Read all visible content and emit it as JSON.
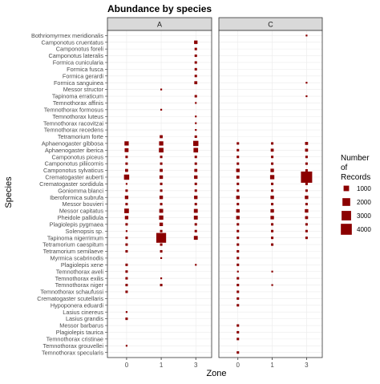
{
  "chart_data": {
    "type": "scatter",
    "title": "Abundance by species",
    "xlabel": "Zone",
    "ylabel": "Species",
    "x_ticks": [
      "0",
      "1",
      "3"
    ],
    "facets": [
      "A",
      "C"
    ],
    "species": [
      "Bothriomyrmex meridionalis",
      "Camponotus cruentatus",
      "Camponotus foreli",
      "Camponotus lateralis",
      "Formica cunicularia",
      "Formica fusca",
      "Formica gerardi",
      "Formica sanguinea",
      "Messor structor",
      "Tapinoma erraticum",
      "Temnothorax affinis",
      "Temnothorax formosus",
      "Temnothorax luteus",
      "Temnothorax racovitzai",
      "Temnothorax recedens",
      "Tetramorium forte",
      "Aphaenogaster gibbosa",
      "Aphaenogaster iberica",
      "Camponotus piceus",
      "Camponotus piliicornis",
      "Camponotus sylvaticus",
      "Crematogaster auberti",
      "Crematogaster sordidula",
      "Goniomma blanci",
      "Iberoformica subrufa",
      "Messor bouvieri",
      "Messor capitatus",
      "Pheidole pallidula",
      "Plagiolepis pygmaea",
      "Solenopsis sp.",
      "Tapinoma nigerrimum",
      "Tetramorium caespitum",
      "Tetramorium semilaeve",
      "Myrmica scabrinodis",
      "Plagiolepis xene",
      "Temnothorax aveli",
      "Temnothorax exilis",
      "Temnothorax niger",
      "Temnothorax schaufussi",
      "Crematogaster scutellaris",
      "Hypoponera eduardi",
      "Lasius cinereus",
      "Lasius grandis",
      "Messor barbarus",
      "Plagiolepis taurica",
      "Temnothorax cristinae",
      "Temnothorax grouvellei",
      "Temnothorax specularis"
    ],
    "legend": {
      "title": "Number of Records",
      "position": "right",
      "breaks": [
        1000,
        2000,
        3000,
        4000
      ],
      "color": "#8b0000"
    },
    "grid": true,
    "points": [
      {
        "facet": "A",
        "species": "Camponotus cruentatus",
        "zone": "3",
        "records": 400
      },
      {
        "facet": "A",
        "species": "Camponotus foreli",
        "zone": "3",
        "records": 200
      },
      {
        "facet": "A",
        "species": "Camponotus lateralis",
        "zone": "3",
        "records": 200
      },
      {
        "facet": "A",
        "species": "Formica cunicularia",
        "zone": "3",
        "records": 200
      },
      {
        "facet": "A",
        "species": "Formica fusca",
        "zone": "3",
        "records": 200
      },
      {
        "facet": "A",
        "species": "Formica gerardi",
        "zone": "3",
        "records": 200
      },
      {
        "facet": "A",
        "species": "Formica sanguinea",
        "zone": "3",
        "records": 300
      },
      {
        "facet": "A",
        "species": "Messor structor",
        "zone": "1",
        "records": 100
      },
      {
        "facet": "A",
        "species": "Tapinoma erraticum",
        "zone": "3",
        "records": 200
      },
      {
        "facet": "A",
        "species": "Temnothorax affinis",
        "zone": "3",
        "records": 100
      },
      {
        "facet": "A",
        "species": "Temnothorax formosus",
        "zone": "1",
        "records": 100
      },
      {
        "facet": "A",
        "species": "Temnothorax luteus",
        "zone": "3",
        "records": 80
      },
      {
        "facet": "A",
        "species": "Temnothorax racovitzai",
        "zone": "3",
        "records": 60
      },
      {
        "facet": "A",
        "species": "Temnothorax recedens",
        "zone": "3",
        "records": 60
      },
      {
        "facet": "A",
        "species": "Tetramorium forte",
        "zone": "1",
        "records": 300
      },
      {
        "facet": "A",
        "species": "Tetramorium forte",
        "zone": "3",
        "records": 200
      },
      {
        "facet": "A",
        "species": "Aphaenogaster gibbosa",
        "zone": "0",
        "records": 600
      },
      {
        "facet": "A",
        "species": "Aphaenogaster gibbosa",
        "zone": "1",
        "records": 600
      },
      {
        "facet": "A",
        "species": "Aphaenogaster gibbosa",
        "zone": "3",
        "records": 900
      },
      {
        "facet": "A",
        "species": "Aphaenogaster iberica",
        "zone": "0",
        "records": 500
      },
      {
        "facet": "A",
        "species": "Aphaenogaster iberica",
        "zone": "1",
        "records": 700
      },
      {
        "facet": "A",
        "species": "Aphaenogaster iberica",
        "zone": "3",
        "records": 700
      },
      {
        "facet": "A",
        "species": "Camponotus piceus",
        "zone": "0",
        "records": 200
      },
      {
        "facet": "A",
        "species": "Camponotus piceus",
        "zone": "1",
        "records": 200
      },
      {
        "facet": "A",
        "species": "Camponotus piceus",
        "zone": "3",
        "records": 200
      },
      {
        "facet": "A",
        "species": "Camponotus piliicornis",
        "zone": "0",
        "records": 200
      },
      {
        "facet": "A",
        "species": "Camponotus piliicornis",
        "zone": "1",
        "records": 200
      },
      {
        "facet": "A",
        "species": "Camponotus piliicornis",
        "zone": "3",
        "records": 200
      },
      {
        "facet": "A",
        "species": "Camponotus sylvaticus",
        "zone": "0",
        "records": 300
      },
      {
        "facet": "A",
        "species": "Camponotus sylvaticus",
        "zone": "1",
        "records": 300
      },
      {
        "facet": "A",
        "species": "Camponotus sylvaticus",
        "zone": "3",
        "records": 300
      },
      {
        "facet": "A",
        "species": "Crematogaster auberti",
        "zone": "0",
        "records": 900
      },
      {
        "facet": "A",
        "species": "Crematogaster auberti",
        "zone": "1",
        "records": 400
      },
      {
        "facet": "A",
        "species": "Crematogaster auberti",
        "zone": "3",
        "records": 400
      },
      {
        "facet": "A",
        "species": "Crematogaster sordidula",
        "zone": "0",
        "records": 100
      },
      {
        "facet": "A",
        "species": "Crematogaster sordidula",
        "zone": "1",
        "records": 200
      },
      {
        "facet": "A",
        "species": "Crematogaster sordidula",
        "zone": "3",
        "records": 200
      },
      {
        "facet": "A",
        "species": "Goniomma blanci",
        "zone": "0",
        "records": 200
      },
      {
        "facet": "A",
        "species": "Goniomma blanci",
        "zone": "1",
        "records": 200
      },
      {
        "facet": "A",
        "species": "Goniomma blanci",
        "zone": "3",
        "records": 200
      },
      {
        "facet": "A",
        "species": "Iberoformica subrufa",
        "zone": "0",
        "records": 400
      },
      {
        "facet": "A",
        "species": "Iberoformica subrufa",
        "zone": "1",
        "records": 400
      },
      {
        "facet": "A",
        "species": "Iberoformica subrufa",
        "zone": "3",
        "records": 400
      },
      {
        "facet": "A",
        "species": "Messor bouvieri",
        "zone": "0",
        "records": 200
      },
      {
        "facet": "A",
        "species": "Messor bouvieri",
        "zone": "1",
        "records": 200
      },
      {
        "facet": "A",
        "species": "Messor bouvieri",
        "zone": "3",
        "records": 200
      },
      {
        "facet": "A",
        "species": "Messor capitatus",
        "zone": "0",
        "records": 700
      },
      {
        "facet": "A",
        "species": "Messor capitatus",
        "zone": "1",
        "records": 500
      },
      {
        "facet": "A",
        "species": "Messor capitatus",
        "zone": "3",
        "records": 500
      },
      {
        "facet": "A",
        "species": "Pheidole pallidula",
        "zone": "0",
        "records": 400
      },
      {
        "facet": "A",
        "species": "Pheidole pallidula",
        "zone": "1",
        "records": 600
      },
      {
        "facet": "A",
        "species": "Pheidole pallidula",
        "zone": "3",
        "records": 500
      },
      {
        "facet": "A",
        "species": "Plagiolepis pygmaea",
        "zone": "0",
        "records": 200
      },
      {
        "facet": "A",
        "species": "Plagiolepis pygmaea",
        "zone": "1",
        "records": 400
      },
      {
        "facet": "A",
        "species": "Plagiolepis pygmaea",
        "zone": "3",
        "records": 200
      },
      {
        "facet": "A",
        "species": "Solenopsis sp.",
        "zone": "0",
        "records": 100
      },
      {
        "facet": "A",
        "species": "Solenopsis sp.",
        "zone": "1",
        "records": 200
      },
      {
        "facet": "A",
        "species": "Solenopsis sp.",
        "zone": "3",
        "records": 200
      },
      {
        "facet": "A",
        "species": "Tapinoma nigerrimum",
        "zone": "0",
        "records": 200
      },
      {
        "facet": "A",
        "species": "Tapinoma nigerrimum",
        "zone": "1",
        "records": 3200
      },
      {
        "facet": "A",
        "species": "Tapinoma nigerrimum",
        "zone": "3",
        "records": 500
      },
      {
        "facet": "A",
        "species": "Tetramorium caespitum",
        "zone": "0",
        "records": 200
      },
      {
        "facet": "A",
        "species": "Tetramorium caespitum",
        "zone": "1",
        "records": 200
      },
      {
        "facet": "A",
        "species": "Tetramorium semilaeve",
        "zone": "0",
        "records": 200
      },
      {
        "facet": "A",
        "species": "Tetramorium semilaeve",
        "zone": "1",
        "records": 200
      },
      {
        "facet": "A",
        "species": "Myrmica scabrinodis",
        "zone": "1",
        "records": 100
      },
      {
        "facet": "A",
        "species": "Plagiolepis xene",
        "zone": "0",
        "records": 200
      },
      {
        "facet": "A",
        "species": "Plagiolepis xene",
        "zone": "3",
        "records": 100
      },
      {
        "facet": "A",
        "species": "Temnothorax aveli",
        "zone": "0",
        "records": 200
      },
      {
        "facet": "A",
        "species": "Temnothorax exilis",
        "zone": "0",
        "records": 200
      },
      {
        "facet": "A",
        "species": "Temnothorax exilis",
        "zone": "1",
        "records": 100
      },
      {
        "facet": "A",
        "species": "Temnothorax niger",
        "zone": "0",
        "records": 200
      },
      {
        "facet": "A",
        "species": "Temnothorax niger",
        "zone": "1",
        "records": 200
      },
      {
        "facet": "A",
        "species": "Temnothorax schaufussi",
        "zone": "0",
        "records": 200
      },
      {
        "facet": "A",
        "species": "Lasius cinereus",
        "zone": "0",
        "records": 100
      },
      {
        "facet": "A",
        "species": "Lasius grandis",
        "zone": "0",
        "records": 200
      },
      {
        "facet": "A",
        "species": "Temnothorax grouvellei",
        "zone": "0",
        "records": 100
      },
      {
        "facet": "C",
        "species": "Bothriomyrmex meridionalis",
        "zone": "3",
        "records": 100
      },
      {
        "facet": "C",
        "species": "Formica sanguinea",
        "zone": "3",
        "records": 100
      },
      {
        "facet": "C",
        "species": "Tapinoma erraticum",
        "zone": "3",
        "records": 100
      },
      {
        "facet": "C",
        "species": "Aphaenogaster gibbosa",
        "zone": "0",
        "records": 200
      },
      {
        "facet": "C",
        "species": "Aphaenogaster gibbosa",
        "zone": "1",
        "records": 200
      },
      {
        "facet": "C",
        "species": "Aphaenogaster gibbosa",
        "zone": "3",
        "records": 300
      },
      {
        "facet": "C",
        "species": "Aphaenogaster iberica",
        "zone": "0",
        "records": 200
      },
      {
        "facet": "C",
        "species": "Aphaenogaster iberica",
        "zone": "1",
        "records": 300
      },
      {
        "facet": "C",
        "species": "Aphaenogaster iberica",
        "zone": "3",
        "records": 300
      },
      {
        "facet": "C",
        "species": "Camponotus piceus",
        "zone": "0",
        "records": 200
      },
      {
        "facet": "C",
        "species": "Camponotus piceus",
        "zone": "1",
        "records": 200
      },
      {
        "facet": "C",
        "species": "Camponotus piceus",
        "zone": "3",
        "records": 200
      },
      {
        "facet": "C",
        "species": "Camponotus piliicornis",
        "zone": "0",
        "records": 200
      },
      {
        "facet": "C",
        "species": "Camponotus piliicornis",
        "zone": "1",
        "records": 200
      },
      {
        "facet": "C",
        "species": "Camponotus piliicornis",
        "zone": "3",
        "records": 200
      },
      {
        "facet": "C",
        "species": "Camponotus sylvaticus",
        "zone": "0",
        "records": 400
      },
      {
        "facet": "C",
        "species": "Camponotus sylvaticus",
        "zone": "1",
        "records": 400
      },
      {
        "facet": "C",
        "species": "Camponotus sylvaticus",
        "zone": "3",
        "records": 200
      },
      {
        "facet": "C",
        "species": "Crematogaster auberti",
        "zone": "0",
        "records": 300
      },
      {
        "facet": "C",
        "species": "Crematogaster auberti",
        "zone": "1",
        "records": 600
      },
      {
        "facet": "C",
        "species": "Crematogaster auberti",
        "zone": "3",
        "records": 4200
      },
      {
        "facet": "C",
        "species": "Crematogaster sordidula",
        "zone": "0",
        "records": 200
      },
      {
        "facet": "C",
        "species": "Crematogaster sordidula",
        "zone": "1",
        "records": 200
      },
      {
        "facet": "C",
        "species": "Crematogaster sordidula",
        "zone": "3",
        "records": 200
      },
      {
        "facet": "C",
        "species": "Goniomma blanci",
        "zone": "0",
        "records": 200
      },
      {
        "facet": "C",
        "species": "Goniomma blanci",
        "zone": "1",
        "records": 200
      },
      {
        "facet": "C",
        "species": "Goniomma blanci",
        "zone": "3",
        "records": 200
      },
      {
        "facet": "C",
        "species": "Iberoformica subrufa",
        "zone": "0",
        "records": 400
      },
      {
        "facet": "C",
        "species": "Iberoformica subrufa",
        "zone": "1",
        "records": 400
      },
      {
        "facet": "C",
        "species": "Iberoformica subrufa",
        "zone": "3",
        "records": 400
      },
      {
        "facet": "C",
        "species": "Messor bouvieri",
        "zone": "0",
        "records": 200
      },
      {
        "facet": "C",
        "species": "Messor bouvieri",
        "zone": "1",
        "records": 200
      },
      {
        "facet": "C",
        "species": "Messor bouvieri",
        "zone": "3",
        "records": 200
      },
      {
        "facet": "C",
        "species": "Messor capitatus",
        "zone": "0",
        "records": 400
      },
      {
        "facet": "C",
        "species": "Messor capitatus",
        "zone": "1",
        "records": 400
      },
      {
        "facet": "C",
        "species": "Messor capitatus",
        "zone": "3",
        "records": 400
      },
      {
        "facet": "C",
        "species": "Pheidole pallidula",
        "zone": "0",
        "records": 400
      },
      {
        "facet": "C",
        "species": "Pheidole pallidula",
        "zone": "1",
        "records": 400
      },
      {
        "facet": "C",
        "species": "Pheidole pallidula",
        "zone": "3",
        "records": 300
      },
      {
        "facet": "C",
        "species": "Plagiolepis pygmaea",
        "zone": "0",
        "records": 200
      },
      {
        "facet": "C",
        "species": "Plagiolepis pygmaea",
        "zone": "1",
        "records": 200
      },
      {
        "facet": "C",
        "species": "Plagiolepis pygmaea",
        "zone": "3",
        "records": 200
      },
      {
        "facet": "C",
        "species": "Solenopsis sp.",
        "zone": "0",
        "records": 200
      },
      {
        "facet": "C",
        "species": "Solenopsis sp.",
        "zone": "1",
        "records": 200
      },
      {
        "facet": "C",
        "species": "Solenopsis sp.",
        "zone": "3",
        "records": 200
      },
      {
        "facet": "C",
        "species": "Tapinoma nigerrimum",
        "zone": "0",
        "records": 200
      },
      {
        "facet": "C",
        "species": "Tapinoma nigerrimum",
        "zone": "1",
        "records": 200
      },
      {
        "facet": "C",
        "species": "Tapinoma nigerrimum",
        "zone": "3",
        "records": 200
      },
      {
        "facet": "C",
        "species": "Tetramorium caespitum",
        "zone": "0",
        "records": 200
      },
      {
        "facet": "C",
        "species": "Tetramorium caespitum",
        "zone": "1",
        "records": 200
      },
      {
        "facet": "C",
        "species": "Tetramorium semilaeve",
        "zone": "0",
        "records": 200
      },
      {
        "facet": "C",
        "species": "Myrmica scabrinodis",
        "zone": "0",
        "records": 200
      },
      {
        "facet": "C",
        "species": "Plagiolepis xene",
        "zone": "0",
        "records": 200
      },
      {
        "facet": "C",
        "species": "Temnothorax aveli",
        "zone": "0",
        "records": 100
      },
      {
        "facet": "C",
        "species": "Temnothorax aveli",
        "zone": "1",
        "records": 100
      },
      {
        "facet": "C",
        "species": "Temnothorax exilis",
        "zone": "0",
        "records": 200
      },
      {
        "facet": "C",
        "species": "Temnothorax niger",
        "zone": "0",
        "records": 200
      },
      {
        "facet": "C",
        "species": "Temnothorax niger",
        "zone": "1",
        "records": 100
      },
      {
        "facet": "C",
        "species": "Temnothorax schaufussi",
        "zone": "0",
        "records": 200
      },
      {
        "facet": "C",
        "species": "Crematogaster scutellaris",
        "zone": "0",
        "records": 200
      },
      {
        "facet": "C",
        "species": "Hypoponera eduardi",
        "zone": "0",
        "records": 200
      },
      {
        "facet": "C",
        "species": "Messor barbarus",
        "zone": "0",
        "records": 200
      },
      {
        "facet": "C",
        "species": "Plagiolepis taurica",
        "zone": "0",
        "records": 200
      },
      {
        "facet": "C",
        "species": "Temnothorax cristinae",
        "zone": "0",
        "records": 200
      },
      {
        "facet": "C",
        "species": "Temnothorax specularis",
        "zone": "0",
        "records": 200
      }
    ]
  }
}
